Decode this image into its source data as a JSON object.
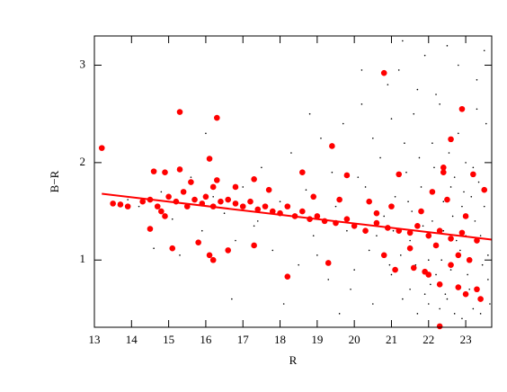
{
  "chart_data": {
    "type": "scatter",
    "xlabel": "R",
    "ylabel": "B−R",
    "xlim": [
      13,
      23.7
    ],
    "ylim": [
      0.31,
      3.3
    ],
    "xticks": [
      13,
      14,
      15,
      16,
      17,
      18,
      19,
      20,
      21,
      22,
      23
    ],
    "yticks": [
      1,
      2,
      3
    ],
    "series": [
      {
        "type": "scatter",
        "color": "#000000",
        "marker_size": 0.8,
        "x": [
          14.2,
          14.8,
          15.1,
          15.6,
          15.9,
          16.2,
          16.5,
          16.8,
          17.0,
          17.3,
          17.5,
          17.8,
          18.0,
          18.3,
          18.5,
          18.7,
          18.9,
          19.1,
          19.3,
          19.5,
          19.7,
          19.9,
          20.1,
          20.2,
          20.4,
          20.5,
          20.7,
          20.8,
          20.9,
          21.0,
          21.1,
          21.2,
          21.3,
          21.4,
          21.5,
          21.6,
          21.7,
          21.8,
          21.9,
          22.0,
          22.1,
          22.2,
          22.3,
          22.4,
          22.5,
          22.6,
          22.7,
          22.8,
          22.9,
          23.0,
          23.1,
          23.2,
          23.3,
          23.4,
          23.5,
          23.6,
          21.05,
          21.25,
          21.45,
          21.65,
          21.85,
          22.05,
          22.25,
          22.45,
          22.65,
          22.85,
          23.05,
          23.25,
          23.45,
          23.65,
          20.3,
          20.6,
          20.95,
          21.35,
          21.75,
          22.15,
          22.55,
          22.95,
          23.35,
          23.55,
          19.0,
          19.4,
          19.8,
          20.0,
          20.5,
          21.0,
          21.5,
          22.0,
          22.5,
          23.0,
          22.2,
          22.7,
          23.2,
          23.6,
          21.9,
          22.4,
          22.9,
          23.4,
          22.1,
          22.6,
          15.3,
          16.0,
          16.7,
          17.4,
          18.1,
          18.8,
          13.9,
          14.6,
          19.6,
          20.2,
          21.3,
          21.7,
          22.3,
          22.8,
          23.3,
          23.5,
          21.55,
          22.35,
          22.75,
          23.15
        ],
        "values": [
          1.55,
          1.7,
          1.42,
          1.85,
          1.3,
          1.65,
          1.48,
          1.2,
          1.75,
          1.35,
          1.95,
          1.1,
          1.6,
          2.1,
          0.95,
          1.72,
          1.25,
          2.25,
          0.8,
          1.55,
          2.4,
          0.7,
          1.85,
          2.6,
          1.1,
          0.55,
          2.05,
          1.45,
          2.8,
          0.85,
          1.65,
          2.95,
          0.6,
          1.9,
          1.2,
          2.5,
          0.45,
          1.75,
          3.1,
          1.0,
          1.4,
          2.7,
          0.5,
          1.6,
          3.2,
          0.9,
          1.85,
          2.3,
          0.4,
          1.25,
          0.7,
          1.95,
          2.85,
          0.45,
          1.55,
          1.05,
          1.3,
          1.05,
          1.6,
          0.95,
          1.35,
          0.75,
          1.15,
          0.65,
          1.45,
          1.1,
          0.85,
          1.4,
          0.95,
          0.55,
          1.75,
          1.25,
          0.95,
          2.2,
          2.05,
          1.95,
          2.1,
          1.7,
          1.8,
          2.4,
          1.05,
          1.9,
          1.3,
          0.9,
          2.25,
          2.45,
          0.7,
          0.55,
          0.6,
          2.0,
          0.85,
          0.45,
          0.5,
          0.8,
          0.65,
          1.3,
          1.55,
          1.25,
          2.2,
          1.75,
          1.05,
          2.3,
          0.6,
          1.4,
          0.55,
          2.5,
          1.62,
          1.12,
          0.45,
          2.95,
          3.25,
          2.75,
          2.6,
          3.0,
          2.55,
          3.15,
          1.5,
          1.0,
          1.2,
          1.65
        ]
      },
      {
        "type": "scatter",
        "color": "#ff0000",
        "marker_size": 3.3,
        "x": [
          13.2,
          15.3,
          16.3,
          20.8,
          22.9,
          22.6,
          19.4,
          16.1,
          14.6,
          14.9,
          15.3,
          16.2,
          16.3,
          17.3,
          18.6,
          19.8,
          21.2,
          22.4,
          22.4,
          23.2,
          13.5,
          13.7,
          13.9,
          14.3,
          14.5,
          14.7,
          14.8,
          15.0,
          15.2,
          15.4,
          15.5,
          15.7,
          15.9,
          16.0,
          16.2,
          16.4,
          16.6,
          16.8,
          17.0,
          17.2,
          17.4,
          17.6,
          17.8,
          18.0,
          18.2,
          18.4,
          18.6,
          18.8,
          19.0,
          19.2,
          19.5,
          19.8,
          20.0,
          20.3,
          20.6,
          20.9,
          21.2,
          21.5,
          21.7,
          22.0,
          22.3,
          22.6,
          22.9,
          23.3,
          14.5,
          15.1,
          15.8,
          16.1,
          16.2,
          16.6,
          17.3,
          18.2,
          19.3,
          20.8,
          21.1,
          21.6,
          22.0,
          22.3,
          22.6,
          22.8,
          23.0,
          23.3,
          23.4,
          22.3,
          21.9,
          20.4,
          21.0,
          21.8,
          22.5,
          23.0,
          23.5,
          22.1,
          20.6,
          19.6,
          18.9,
          17.7,
          16.8,
          15.6,
          14.9,
          22.8,
          21.5,
          23.1,
          22.2
        ],
        "values": [
          2.15,
          2.52,
          2.46,
          2.92,
          2.55,
          2.24,
          2.17,
          2.04,
          1.91,
          1.9,
          1.93,
          1.75,
          1.82,
          1.83,
          1.9,
          1.87,
          1.88,
          1.95,
          1.9,
          1.88,
          1.58,
          1.57,
          1.55,
          1.6,
          1.62,
          1.55,
          1.5,
          1.65,
          1.6,
          1.7,
          1.55,
          1.62,
          1.58,
          1.65,
          1.55,
          1.6,
          1.62,
          1.58,
          1.55,
          1.6,
          1.52,
          1.55,
          1.5,
          1.48,
          1.55,
          1.45,
          1.5,
          1.42,
          1.45,
          1.4,
          1.38,
          1.42,
          1.35,
          1.3,
          1.38,
          1.33,
          1.3,
          1.28,
          1.35,
          1.25,
          1.3,
          1.22,
          1.28,
          1.2,
          1.32,
          1.12,
          1.18,
          1.05,
          1.0,
          1.1,
          1.15,
          0.83,
          0.97,
          1.05,
          0.9,
          0.92,
          0.85,
          0.75,
          0.95,
          0.72,
          0.65,
          0.7,
          0.6,
          0.32,
          0.88,
          1.6,
          1.55,
          1.5,
          1.62,
          1.45,
          1.72,
          1.7,
          1.48,
          1.62,
          1.65,
          1.72,
          1.75,
          1.8,
          1.45,
          1.05,
          1.12,
          1.0,
          1.15
        ]
      },
      {
        "type": "line",
        "color": "#ff0000",
        "x": [
          13.2,
          23.7
        ],
        "values": [
          1.68,
          1.21
        ]
      }
    ]
  }
}
